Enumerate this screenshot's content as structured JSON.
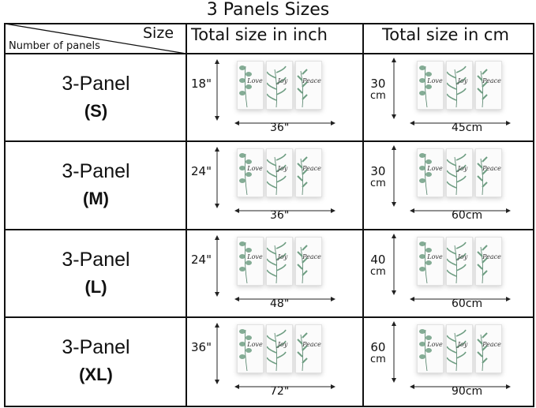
{
  "title": "3 Panels Sizes",
  "header": {
    "size_label": "Size",
    "number_label": "Number of panels",
    "col_inch": "Total size in inch",
    "col_cm": "Total size in cm"
  },
  "panel_words": [
    "Love",
    "Joy",
    "Peace"
  ],
  "colors": {
    "leaf": "#6f9e83",
    "leaf_dark": "#4f7f66",
    "line": "#111111"
  },
  "rows": [
    {
      "name": "3-Panel",
      "size": "(S)",
      "inch": {
        "height": "18\"",
        "width": "36\""
      },
      "cm": {
        "height": "30",
        "height_unit": "cm",
        "width": "45cm"
      }
    },
    {
      "name": "3-Panel",
      "size": "(M)",
      "inch": {
        "height": "24\"",
        "width": "36\""
      },
      "cm": {
        "height": "30",
        "height_unit": "cm",
        "width": "60cm"
      }
    },
    {
      "name": "3-Panel",
      "size": "(L)",
      "inch": {
        "height": "24\"",
        "width": "48\""
      },
      "cm": {
        "height": "40",
        "height_unit": "cm",
        "width": "60cm"
      }
    },
    {
      "name": "3-Panel",
      "size": "(XL)",
      "inch": {
        "height": "36\"",
        "width": "72\""
      },
      "cm": {
        "height": "60",
        "height_unit": "cm",
        "width": "90cm"
      }
    }
  ]
}
